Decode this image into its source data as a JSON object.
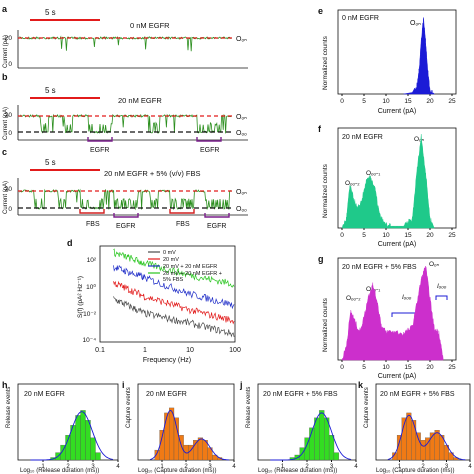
{
  "colors": {
    "trace_green": "#2c8f1f",
    "red_dash": "#e21b1b",
    "black_dash": "#111111",
    "scale_red": "#e21b1b",
    "bracket_red": "#d22020",
    "bracket_purple": "#7a1f8c",
    "hist_blue": "#1b1bd6",
    "hist_teal": "#1fc98a",
    "hist_magenta": "#cc2fcc",
    "bar_green": "#33dd22",
    "bar_orange": "#f07a15",
    "psd": [
      "#4b4b4b",
      "#e21b1b",
      "#2230c8",
      "#29c51f"
    ]
  },
  "panels": {
    "a": {
      "label": "a",
      "scale": "5 s",
      "title": "0 nM EGFR",
      "state": "Oₒₙ",
      "yticks": [
        "0",
        "20"
      ],
      "ylabel": "Current (pA)"
    },
    "b": {
      "label": "b",
      "scale": "5 s",
      "title": "20 nM EGFR",
      "state_on": "Oₒₙ",
      "state_off": "Oₒₒ",
      "yticks": [
        "0",
        "20"
      ],
      "ylabel": "Current (pA)",
      "events": [
        "EGFR",
        "EGFR"
      ]
    },
    "c": {
      "label": "c",
      "scale": "5 s",
      "title": "20 nM EGFR + 5% (v/v) FBS",
      "state_on": "Oₒₙ",
      "state_off": "Oₒₒ",
      "yticks": [
        "0",
        "20"
      ],
      "ylabel": "Current (pA)",
      "events": [
        "FBS",
        "EGFR",
        "FBS",
        "EGFR"
      ]
    },
    "d": {
      "label": "d",
      "ylabel": "S(f) (pA² Hz⁻¹)",
      "xlabel": "Frequency (Hz)",
      "yticks": [
        "10²",
        "10⁰",
        "10⁻²",
        "10⁻⁴"
      ],
      "xticks": [
        "0.1",
        "1",
        "10",
        "100"
      ],
      "legend": [
        "0 mV",
        "20 mV",
        "20 mV + 20 nM EGFR",
        "20 mV + 20 nM EGFR +",
        "5% FBS"
      ]
    },
    "e": {
      "label": "e",
      "title": "0 nM EGFR",
      "peak": "Oₒₙ",
      "ylabel": "Normalized counts",
      "xlabel": "Current (pA)",
      "xticks": [
        "0",
        "5",
        "10",
        "15",
        "20",
        "25"
      ],
      "yticks": [
        "0.0",
        "0.2",
        "0.4",
        "0.6",
        "0.8",
        "1.0"
      ]
    },
    "f": {
      "label": "f",
      "title": "20 nM EGFR",
      "peaks": [
        "Oₒₒ-₂",
        "Oₒₒ-₁",
        "Oₒₙ"
      ],
      "ylabel": "Normalized counts",
      "xlabel": "Current (pA)",
      "xticks": [
        "0",
        "5",
        "10",
        "15",
        "20",
        "25"
      ],
      "yticks": [
        "0.0",
        "0.2",
        "0.4",
        "0.6",
        "0.8",
        "1.0"
      ]
    },
    "g": {
      "label": "g",
      "title": "20 nM EGFR + 5% FBS",
      "peaks": [
        "Oₒₒ-₂",
        "Oₒₒ-₁",
        "Oₒₙ"
      ],
      "bands": [
        "Iₒₒₒ",
        "Iₒₒₒ"
      ],
      "ylabel": "Normalized counts",
      "xlabel": "Current (pA)",
      "xticks": [
        "0",
        "5",
        "10",
        "15",
        "20",
        "25"
      ],
      "yticks": [
        "0.0",
        "0.2",
        "0.4",
        "0.6",
        "0.8",
        "1.0"
      ]
    },
    "h": {
      "label": "h",
      "title": "20 nM EGFR",
      "ylabel": "Release events",
      "xlabel": "Log₁₀ (Release duration (ms))",
      "xticks": [
        "1",
        "2",
        "3",
        "4"
      ]
    },
    "i": {
      "label": "i",
      "title": "20 nM EGFR",
      "ylabel": "Capture events",
      "xlabel": "Log₁₀ (Capture duration (ms))",
      "xticks": [
        "1",
        "2",
        "3",
        "4"
      ]
    },
    "j": {
      "label": "j",
      "title": "20 nM EGFR + 5% FBS",
      "ylabel": "Release events",
      "xlabel": "Log₁₀ (Release duration (ms))",
      "xticks": [
        "1",
        "2",
        "3",
        "4"
      ]
    },
    "k": {
      "label": "k",
      "title": "20 nM EGFR + 5% FBS",
      "ylabel": "Capture events",
      "xlabel": "Log₁₀ (Capture duration (ms))",
      "xticks": [
        "1",
        "2",
        "3",
        "4"
      ]
    }
  },
  "chart_data": [
    {
      "id": "d",
      "type": "line",
      "log_x": true,
      "log_y": true,
      "xlim": [
        0.1,
        100
      ],
      "ylim": [
        0.0001,
        100
      ],
      "series": [
        {
          "name": "0 mV",
          "x": [
            0.2,
            1,
            10,
            100
          ],
          "y": [
            0.05,
            0.006,
            0.0015,
            0.0003
          ]
        },
        {
          "name": "20 mV",
          "x": [
            0.2,
            1,
            10,
            100
          ],
          "y": [
            0.5,
            0.07,
            0.01,
            0.002
          ]
        },
        {
          "name": "20 mV + 20 nM EGFR",
          "x": [
            0.2,
            1,
            10,
            100
          ],
          "y": [
            5,
            1,
            0.1,
            0.02
          ]
        },
        {
          "name": "20 mV + 20 nM EGFR + 5% FBS",
          "x": [
            0.2,
            1,
            10,
            100
          ],
          "y": [
            40,
            8,
            1.5,
            0.4
          ]
        }
      ]
    },
    {
      "id": "e",
      "type": "area",
      "xlim": [
        0,
        25
      ],
      "ylim": [
        0,
        1
      ],
      "x": [
        14,
        16,
        17,
        17.5,
        18,
        18.5,
        19,
        19.5,
        20,
        21
      ],
      "y": [
        0,
        0.02,
        0.1,
        0.3,
        0.7,
        1.0,
        0.7,
        0.3,
        0.05,
        0
      ]
    },
    {
      "id": "f",
      "type": "area",
      "xlim": [
        0,
        25
      ],
      "ylim": [
        0,
        1
      ],
      "x": [
        0,
        1,
        1.8,
        2.5,
        3.5,
        4.5,
        5.5,
        6.5,
        7.5,
        8.5,
        9.5,
        11,
        14,
        16,
        17,
        18,
        19,
        20,
        21
      ],
      "y": [
        0,
        0.1,
        0.46,
        0.34,
        0.2,
        0.3,
        0.5,
        0.56,
        0.42,
        0.15,
        0.05,
        0.02,
        0.02,
        0.1,
        0.6,
        1.0,
        0.6,
        0.1,
        0
      ]
    },
    {
      "id": "g",
      "type": "area",
      "xlim": [
        0,
        25
      ],
      "ylim": [
        0,
        1
      ],
      "x": [
        0,
        1,
        2,
        3,
        4,
        5,
        6,
        7,
        8,
        9,
        10,
        12,
        14,
        16,
        17,
        18,
        19,
        20,
        21,
        22,
        23
      ],
      "y": [
        0,
        0.15,
        0.52,
        0.4,
        0.3,
        0.45,
        0.68,
        0.8,
        0.62,
        0.35,
        0.3,
        0.3,
        0.28,
        0.35,
        0.6,
        0.85,
        1.0,
        0.65,
        0.32,
        0.3,
        0
      ]
    },
    {
      "id": "h",
      "type": "bar",
      "xlim": [
        0,
        4
      ],
      "ylim": [
        0,
        25
      ],
      "x": [
        1.4,
        1.6,
        1.8,
        2.0,
        2.2,
        2.4,
        2.6,
        2.8,
        3.0,
        3.2
      ],
      "values": [
        1,
        3,
        6,
        10,
        14,
        18,
        20,
        16,
        9,
        3
      ]
    },
    {
      "id": "i",
      "type": "bar",
      "xlim": [
        0,
        4
      ],
      "ylim": [
        0,
        25
      ],
      "x": [
        0.8,
        1.0,
        1.2,
        1.4,
        1.6,
        1.8,
        2.0,
        2.2,
        2.4,
        2.6,
        2.8,
        3.0,
        3.2,
        3.4
      ],
      "values": [
        4,
        12,
        19,
        21,
        17,
        10,
        6,
        6,
        8,
        9,
        8,
        5,
        2,
        1
      ]
    },
    {
      "id": "j",
      "type": "bar",
      "xlim": [
        0,
        4
      ],
      "ylim": [
        0,
        25
      ],
      "x": [
        1.4,
        1.6,
        1.8,
        2.0,
        2.2,
        2.4,
        2.6,
        2.8,
        3.0,
        3.2
      ],
      "values": [
        1,
        2,
        5,
        9,
        13,
        17,
        20,
        17,
        10,
        3
      ]
    },
    {
      "id": "k",
      "type": "bar",
      "xlim": [
        0,
        4
      ],
      "ylim": [
        0,
        25
      ],
      "x": [
        0.8,
        1.0,
        1.2,
        1.4,
        1.6,
        1.8,
        2.0,
        2.2,
        2.4,
        2.6,
        2.8,
        3.0,
        3.2,
        3.4
      ],
      "values": [
        3,
        10,
        17,
        19,
        16,
        11,
        8,
        9,
        11,
        12,
        10,
        6,
        3,
        1
      ]
    }
  ]
}
